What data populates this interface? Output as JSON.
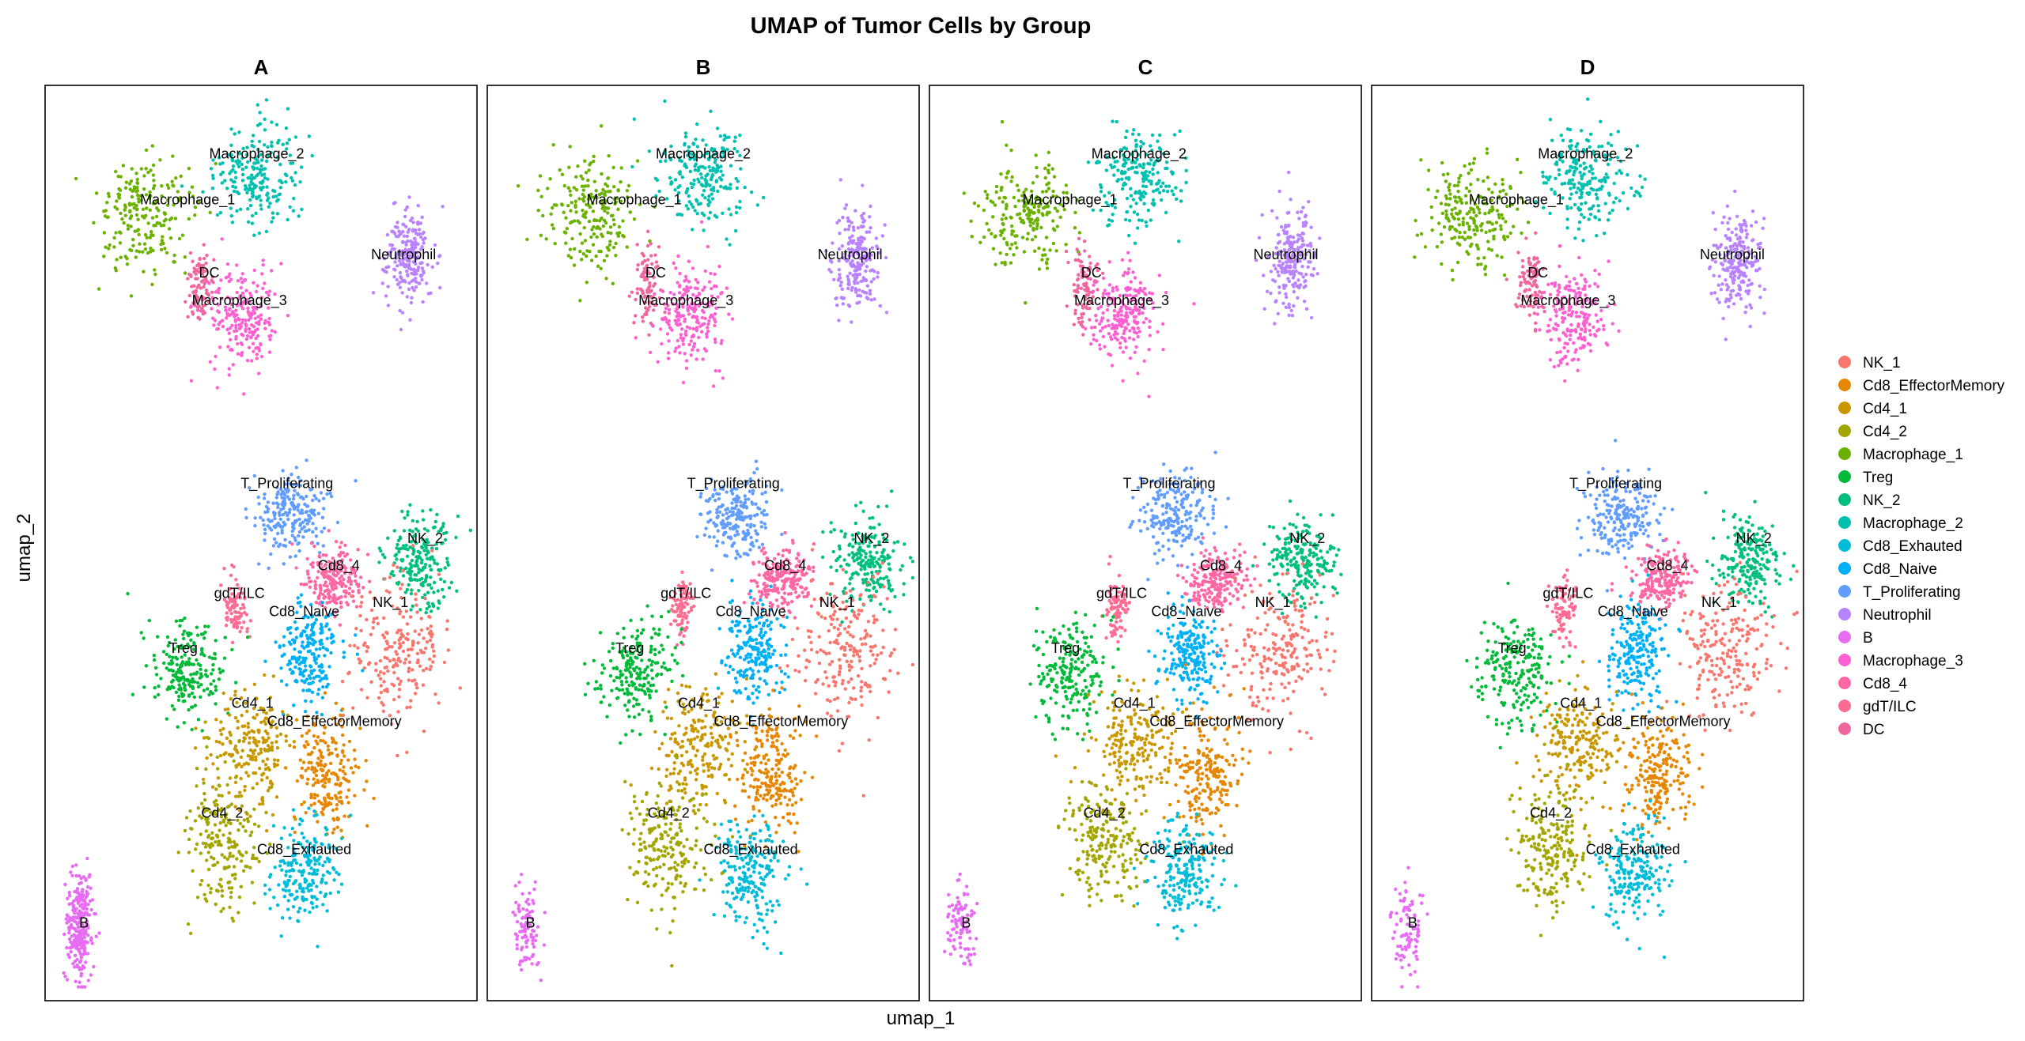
{
  "chart_data": {
    "type": "scatter",
    "title": "UMAP of Tumor Cells by Group",
    "xlabel": "umap_1",
    "ylabel": "umap_2",
    "panels": [
      "A",
      "B",
      "C",
      "D"
    ],
    "grid": false,
    "legend_position": "right",
    "legend": [
      {
        "name": "NK_1",
        "color": "#F8766D"
      },
      {
        "name": "Cd8_EffectorMemory",
        "color": "#E58700"
      },
      {
        "name": "Cd4_1",
        "color": "#C99800"
      },
      {
        "name": "Cd4_2",
        "color": "#A3A500"
      },
      {
        "name": "Macrophage_1",
        "color": "#6BB100"
      },
      {
        "name": "Treg",
        "color": "#00BA38"
      },
      {
        "name": "NK_2",
        "color": "#00BF7D"
      },
      {
        "name": "Macrophage_2",
        "color": "#00C0AF"
      },
      {
        "name": "Cd8_Exhauted",
        "color": "#00BCD8"
      },
      {
        "name": "Cd8_Naive",
        "color": "#00B0F6"
      },
      {
        "name": "T_Proliferating",
        "color": "#619CFF"
      },
      {
        "name": "Neutrophil",
        "color": "#B983FF"
      },
      {
        "name": "B",
        "color": "#E76BF3"
      },
      {
        "name": "Macrophage_3",
        "color": "#FD61D1"
      },
      {
        "name": "Cd8_4",
        "color": "#FF67A4"
      },
      {
        "name": "gdT/ILC",
        "color": "#FF6C91"
      },
      {
        "name": "DC",
        "color": "#F0679F"
      }
    ],
    "cluster_labels": [
      "Macrophage_2",
      "Macrophage_1",
      "Neutrophil",
      "DC",
      "Macrophage_3",
      "T_Proliferating",
      "NK_2",
      "Cd8_4",
      "gdT/ILC",
      "NK_1",
      "Cd8_Naive",
      "Treg",
      "Cd4_1",
      "Cd8_EffectorMemory",
      "Cd4_2",
      "Cd8_Exhauted",
      "B"
    ]
  }
}
